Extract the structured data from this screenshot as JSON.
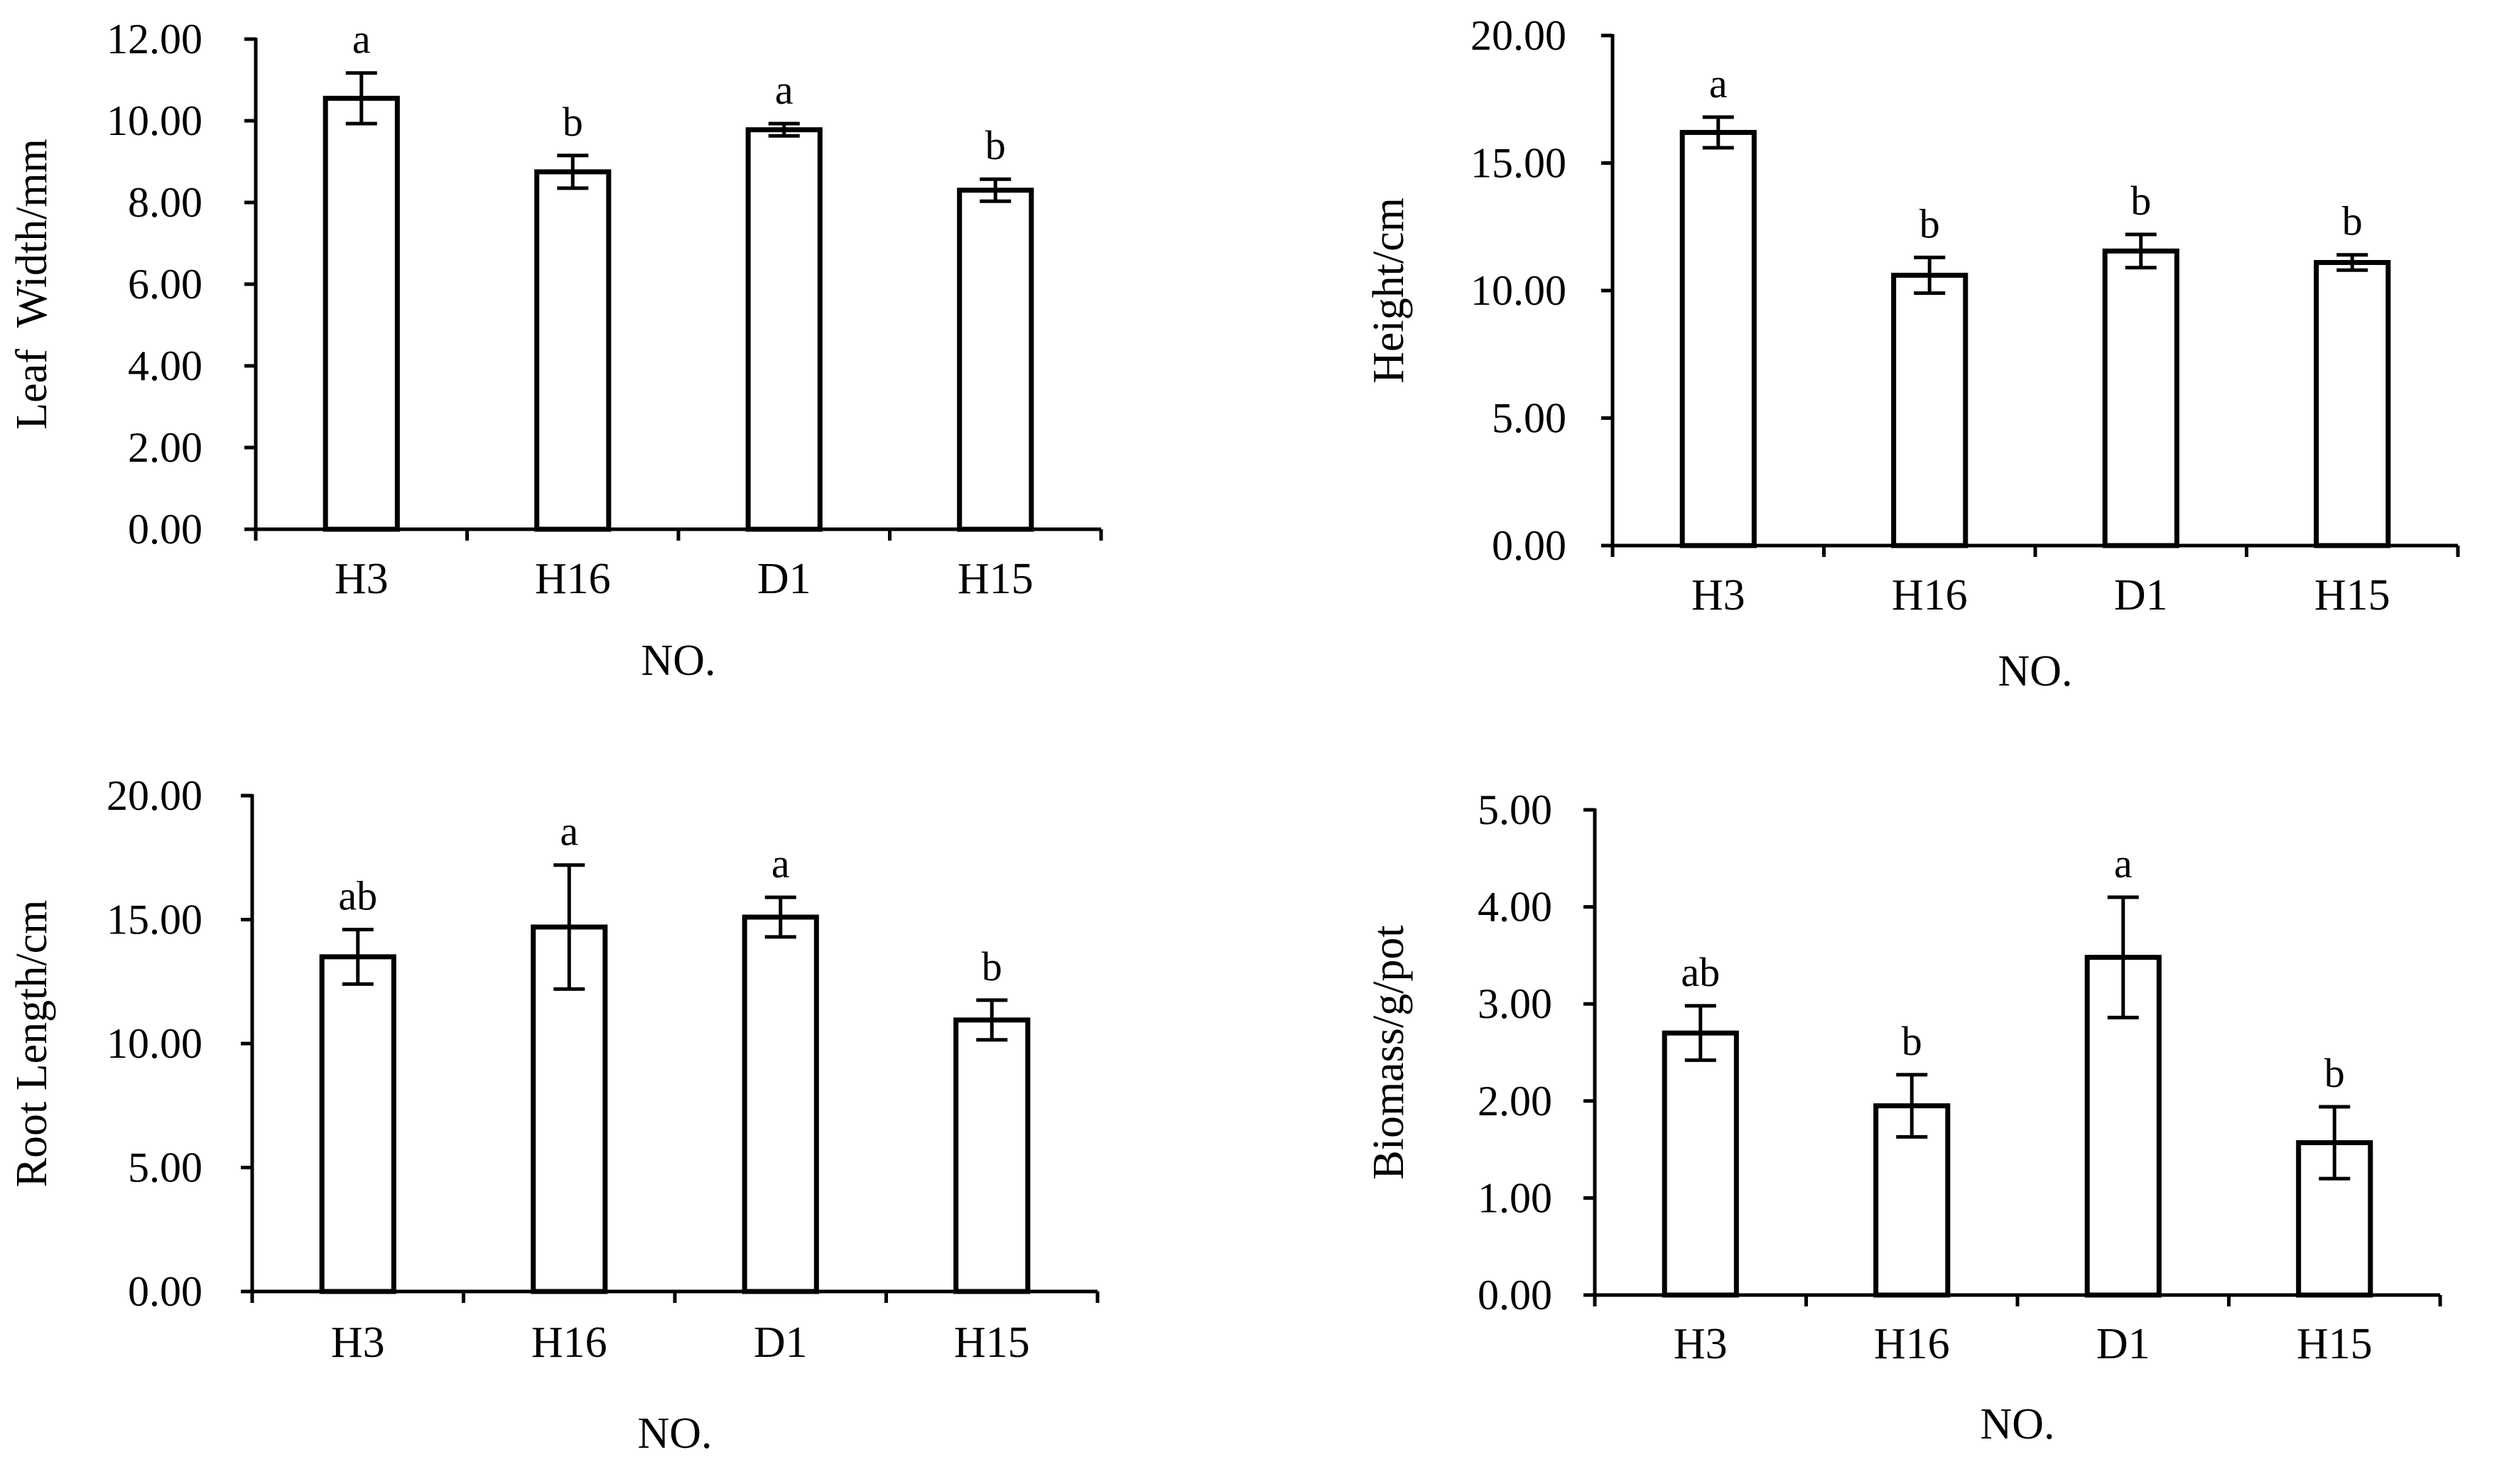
{
  "chart_data": [
    {
      "type": "bar",
      "categories": [
        "H3",
        "H16",
        "D1",
        "H15"
      ],
      "values": [
        10.55,
        8.75,
        9.78,
        8.3
      ],
      "errors": [
        0.62,
        0.4,
        0.15,
        0.27
      ],
      "significance": [
        "a",
        "b",
        "a",
        "b"
      ],
      "xlabel": "NO.",
      "ylabel": "Leaf  Width/mm",
      "ylim": [
        0,
        12
      ],
      "yticks": [
        "0.00",
        "2.00",
        "4.00",
        "6.00",
        "8.00",
        "10.00",
        "12.00"
      ],
      "grid": false
    },
    {
      "type": "bar",
      "categories": [
        "H3",
        "H16",
        "D1",
        "H15"
      ],
      "values": [
        16.2,
        10.6,
        11.55,
        11.1
      ],
      "errors": [
        0.6,
        0.7,
        0.65,
        0.3
      ],
      "significance": [
        "a",
        "b",
        "b",
        "b"
      ],
      "xlabel": "NO.",
      "ylabel": "Height/cm",
      "ylim": [
        0,
        20
      ],
      "yticks": [
        "0.00",
        "5.00",
        "10.00",
        "15.00",
        "20.00"
      ],
      "grid": false
    },
    {
      "type": "bar",
      "categories": [
        "H3",
        "H16",
        "D1",
        "H15"
      ],
      "values": [
        13.5,
        14.7,
        15.1,
        10.95
      ],
      "errors": [
        1.1,
        2.5,
        0.8,
        0.8
      ],
      "significance": [
        "ab",
        "a",
        "a",
        "b"
      ],
      "xlabel": "NO.",
      "ylabel": "Root Length/cm",
      "ylim": [
        0,
        20
      ],
      "yticks": [
        "0.00",
        "5.00",
        "10.00",
        "15.00",
        "20.00"
      ],
      "grid": false
    },
    {
      "type": "bar",
      "categories": [
        "H3",
        "H16",
        "D1",
        "H15"
      ],
      "values": [
        2.7,
        1.95,
        3.48,
        1.57
      ],
      "errors": [
        0.28,
        0.32,
        0.62,
        0.37
      ],
      "significance": [
        "ab",
        "b",
        "a",
        "b"
      ],
      "xlabel": "NO.",
      "ylabel": "Biomass/g/pot",
      "ylim": [
        0,
        5
      ],
      "yticks": [
        "0.00",
        "1.00",
        "2.00",
        "3.00",
        "4.00",
        "5.00"
      ],
      "grid": false
    }
  ]
}
